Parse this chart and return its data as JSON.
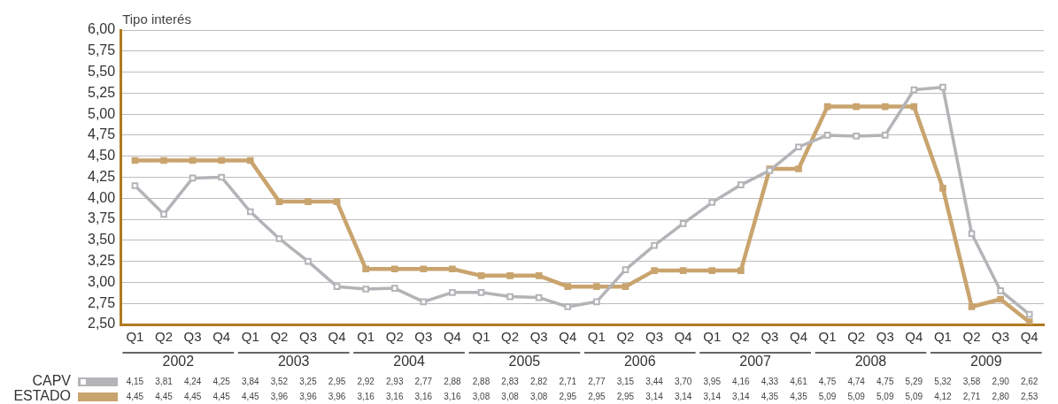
{
  "chart_data": {
    "type": "line",
    "ylabel": "Tipo interés",
    "categories": [
      "Q1",
      "Q2",
      "Q3",
      "Q4",
      "Q1",
      "Q2",
      "Q3",
      "Q4",
      "Q1",
      "Q2",
      "Q3",
      "Q4",
      "Q1",
      "Q2",
      "Q3",
      "Q4",
      "Q1",
      "Q2",
      "Q3",
      "Q4",
      "Q1",
      "Q2",
      "Q3",
      "Q4",
      "Q1",
      "Q2",
      "Q3",
      "Q4",
      "Q1",
      "Q2",
      "Q3",
      "Q4"
    ],
    "annotations": [
      "2002",
      "2003",
      "2004",
      "2005",
      "2006",
      "2007",
      "2008",
      "2009"
    ],
    "series": [
      {
        "name": "CAPV",
        "color": "#b4b4b8",
        "marker": "square",
        "values": [
          4.15,
          3.81,
          4.24,
          4.25,
          3.84,
          3.52,
          3.25,
          2.95,
          2.92,
          2.93,
          2.77,
          2.88,
          2.88,
          2.83,
          2.82,
          2.71,
          2.77,
          3.15,
          3.44,
          3.7,
          3.95,
          4.16,
          4.33,
          4.61,
          4.75,
          4.74,
          4.75,
          5.29,
          5.32,
          3.58,
          2.9,
          2.62
        ],
        "value_labels": [
          "4,15",
          "3,81",
          "4,24",
          "4,25",
          "3,84",
          "3,52",
          "3,25",
          "2,95",
          "2,92",
          "2,93",
          "2,77",
          "2,88",
          "2,88",
          "2,83",
          "2,82",
          "2,71",
          "2,77",
          "3,15",
          "3,44",
          "3,70",
          "3,95",
          "4,16",
          "4,33",
          "4,61",
          "4,75",
          "4,74",
          "4,75",
          "5,29",
          "5,32",
          "3,58",
          "2,90",
          "2,62"
        ]
      },
      {
        "name": "ESTADO",
        "color": "#c9a46e",
        "marker": "square",
        "values": [
          4.45,
          4.45,
          4.45,
          4.45,
          4.45,
          3.96,
          3.96,
          3.96,
          3.16,
          3.16,
          3.16,
          3.16,
          3.08,
          3.08,
          3.08,
          2.95,
          2.95,
          2.95,
          3.14,
          3.14,
          3.14,
          3.14,
          4.35,
          4.35,
          5.09,
          5.09,
          5.09,
          5.09,
          4.12,
          2.71,
          2.8,
          2.53
        ],
        "value_labels": [
          "4,45",
          "4,45",
          "4,45",
          "4,45",
          "4,45",
          "3,96",
          "3,96",
          "3,96",
          "3,16",
          "3,16",
          "3,16",
          "3,16",
          "3,08",
          "3,08",
          "3,08",
          "2,95",
          "2,95",
          "2,95",
          "3,14",
          "3,14",
          "3,14",
          "3,14",
          "4,35",
          "4,35",
          "5,09",
          "5,09",
          "5,09",
          "5,09",
          "4,12",
          "2,71",
          "2,80",
          "2,53"
        ]
      }
    ],
    "ylim": [
      2.5,
      6
    ],
    "yticks": [
      {
        "value": 2.5,
        "label": "2,50"
      },
      {
        "value": 2.75,
        "label": "2,75"
      },
      {
        "value": 3,
        "label": "3,00"
      },
      {
        "value": 3.25,
        "label": "3,25"
      },
      {
        "value": 3.5,
        "label": "3,50"
      },
      {
        "value": 3.75,
        "label": "3,75"
      },
      {
        "value": 4,
        "label": "4,00"
      },
      {
        "value": 4.25,
        "label": "4,25"
      },
      {
        "value": 4.5,
        "label": "4,50"
      },
      {
        "value": 4.75,
        "label": "4,75"
      },
      {
        "value": 5,
        "label": "5,00"
      },
      {
        "value": 5.25,
        "label": "5,25"
      },
      {
        "value": 5.5,
        "label": "5,50"
      },
      {
        "value": 5.75,
        "label": "5,75"
      },
      {
        "value": 6,
        "label": "6,00"
      }
    ],
    "grid": "y",
    "legend": "bottom left",
    "line_style": "solid"
  }
}
